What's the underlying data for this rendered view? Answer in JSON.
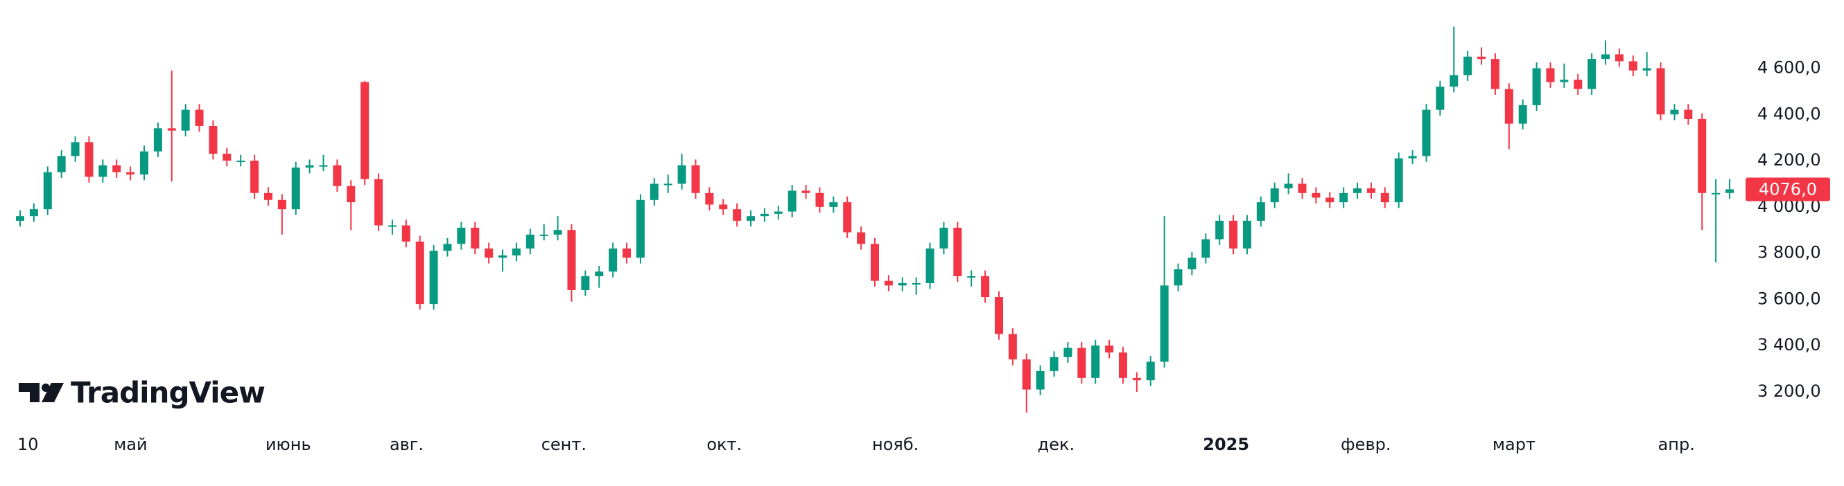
{
  "chart_data": {
    "type": "candlestick",
    "brand": "TradingView",
    "up_color": "#089981",
    "down_color": "#f23645",
    "ylim": [
      3068,
      4895
    ],
    "yticks": [
      {
        "value": 3200,
        "label": "3 200,0"
      },
      {
        "value": 3400,
        "label": "3 400,0"
      },
      {
        "value": 3600,
        "label": "3 600,0"
      },
      {
        "value": 3800,
        "label": "3 800,0"
      },
      {
        "value": 4000,
        "label": "4 000,0"
      },
      {
        "value": 4200,
        "label": "4 200,0"
      },
      {
        "value": 4400,
        "label": "4 400,0"
      },
      {
        "value": 4600,
        "label": "4 600,0"
      }
    ],
    "x_labels": [
      {
        "label": "10",
        "index": 0
      },
      {
        "label": "май",
        "index": 7
      },
      {
        "label": "июнь",
        "index": 18
      },
      {
        "label": "авг.",
        "index": 27
      },
      {
        "label": "сент.",
        "index": 38
      },
      {
        "label": "окт.",
        "index": 50
      },
      {
        "label": "нояб.",
        "index": 62
      },
      {
        "label": "дек.",
        "index": 74
      },
      {
        "label": "2025",
        "index": 86
      },
      {
        "label": "февр.",
        "index": 96
      },
      {
        "label": "март",
        "index": 107
      },
      {
        "label": "апр.",
        "index": 119
      }
    ],
    "last_price_label": "4076,0",
    "candles": [
      [
        3940,
        3985,
        3915,
        3960
      ],
      [
        3960,
        4015,
        3935,
        3990
      ],
      [
        3990,
        4175,
        3965,
        4150
      ],
      [
        4150,
        4245,
        4125,
        4220
      ],
      [
        4220,
        4305,
        4195,
        4280
      ],
      [
        4280,
        4305,
        4105,
        4130
      ],
      [
        4130,
        4205,
        4105,
        4180
      ],
      [
        4180,
        4205,
        4125,
        4150
      ],
      [
        4150,
        4175,
        4115,
        4140
      ],
      [
        4140,
        4265,
        4115,
        4240
      ],
      [
        4240,
        4365,
        4215,
        4340
      ],
      [
        4340,
        4590,
        4110,
        4330
      ],
      [
        4330,
        4445,
        4305,
        4420
      ],
      [
        4420,
        4445,
        4325,
        4350
      ],
      [
        4350,
        4375,
        4205,
        4230
      ],
      [
        4230,
        4255,
        4175,
        4200
      ],
      [
        4200,
        4225,
        4175,
        4200
      ],
      [
        4200,
        4225,
        4035,
        4060
      ],
      [
        4060,
        4085,
        4005,
        4030
      ],
      [
        4030,
        4055,
        3880,
        3990
      ],
      [
        3990,
        4195,
        3965,
        4170
      ],
      [
        4170,
        4205,
        4145,
        4180
      ],
      [
        4180,
        4225,
        4155,
        4180
      ],
      [
        4180,
        4205,
        4065,
        4090
      ],
      [
        4090,
        4115,
        3900,
        4020
      ],
      [
        4540,
        4545,
        4095,
        4120
      ],
      [
        4120,
        4145,
        3895,
        3920
      ],
      [
        3920,
        3945,
        3880,
        3920
      ],
      [
        3920,
        3945,
        3825,
        3850
      ],
      [
        3850,
        3875,
        3555,
        3580
      ],
      [
        3580,
        3835,
        3555,
        3810
      ],
      [
        3810,
        3865,
        3785,
        3840
      ],
      [
        3840,
        3935,
        3815,
        3910
      ],
      [
        3910,
        3935,
        3795,
        3820
      ],
      [
        3820,
        3845,
        3755,
        3780
      ],
      [
        3780,
        3815,
        3720,
        3790
      ],
      [
        3790,
        3845,
        3765,
        3820
      ],
      [
        3820,
        3905,
        3795,
        3880
      ],
      [
        3880,
        3925,
        3855,
        3880
      ],
      [
        3880,
        3960,
        3855,
        3900
      ],
      [
        3900,
        3925,
        3590,
        3640
      ],
      [
        3640,
        3725,
        3615,
        3700
      ],
      [
        3700,
        3745,
        3650,
        3720
      ],
      [
        3720,
        3845,
        3695,
        3820
      ],
      [
        3820,
        3845,
        3755,
        3780
      ],
      [
        3780,
        4055,
        3755,
        4030
      ],
      [
        4030,
        4125,
        4005,
        4100
      ],
      [
        4100,
        4140,
        4060,
        4100
      ],
      [
        4100,
        4230,
        4075,
        4180
      ],
      [
        4180,
        4205,
        4035,
        4060
      ],
      [
        4060,
        4085,
        3985,
        4010
      ],
      [
        4010,
        4035,
        3965,
        3990
      ],
      [
        3990,
        4015,
        3915,
        3940
      ],
      [
        3940,
        3985,
        3915,
        3960
      ],
      [
        3960,
        3995,
        3935,
        3970
      ],
      [
        3970,
        4005,
        3945,
        3980
      ],
      [
        3980,
        4095,
        3955,
        4070
      ],
      [
        4070,
        4095,
        4035,
        4060
      ],
      [
        4060,
        4085,
        3975,
        4000
      ],
      [
        4000,
        4045,
        3975,
        4020
      ],
      [
        4020,
        4045,
        3865,
        3890
      ],
      [
        3890,
        3915,
        3815,
        3840
      ],
      [
        3840,
        3865,
        3655,
        3680
      ],
      [
        3680,
        3705,
        3635,
        3660
      ],
      [
        3660,
        3695,
        3635,
        3670
      ],
      [
        3670,
        3695,
        3620,
        3670
      ],
      [
        3670,
        3845,
        3645,
        3820
      ],
      [
        3820,
        3935,
        3795,
        3910
      ],
      [
        3910,
        3935,
        3675,
        3700
      ],
      [
        3700,
        3725,
        3655,
        3700
      ],
      [
        3700,
        3725,
        3585,
        3610
      ],
      [
        3610,
        3635,
        3425,
        3450
      ],
      [
        3450,
        3475,
        3315,
        3340
      ],
      [
        3340,
        3365,
        3110,
        3210
      ],
      [
        3210,
        3315,
        3185,
        3290
      ],
      [
        3290,
        3375,
        3265,
        3350
      ],
      [
        3350,
        3415,
        3325,
        3390
      ],
      [
        3390,
        3415,
        3235,
        3260
      ],
      [
        3260,
        3425,
        3235,
        3400
      ],
      [
        3400,
        3425,
        3345,
        3370
      ],
      [
        3370,
        3395,
        3235,
        3260
      ],
      [
        3260,
        3285,
        3200,
        3250
      ],
      [
        3250,
        3355,
        3225,
        3330
      ],
      [
        3330,
        3960,
        3305,
        3660
      ],
      [
        3660,
        3755,
        3635,
        3730
      ],
      [
        3730,
        3805,
        3705,
        3780
      ],
      [
        3780,
        3885,
        3755,
        3860
      ],
      [
        3860,
        3965,
        3835,
        3940
      ],
      [
        3940,
        3965,
        3795,
        3820
      ],
      [
        3820,
        3965,
        3795,
        3940
      ],
      [
        3940,
        4045,
        3915,
        4020
      ],
      [
        4020,
        4105,
        3995,
        4080
      ],
      [
        4080,
        4145,
        4055,
        4100
      ],
      [
        4100,
        4125,
        4035,
        4060
      ],
      [
        4060,
        4085,
        4015,
        4040
      ],
      [
        4040,
        4065,
        3995,
        4020
      ],
      [
        4020,
        4085,
        3995,
        4060
      ],
      [
        4060,
        4105,
        4035,
        4080
      ],
      [
        4080,
        4105,
        4035,
        4060
      ],
      [
        4060,
        4085,
        3995,
        4020
      ],
      [
        4020,
        4235,
        3995,
        4210
      ],
      [
        4210,
        4245,
        4185,
        4220
      ],
      [
        4220,
        4445,
        4195,
        4420
      ],
      [
        4420,
        4545,
        4395,
        4520
      ],
      [
        4520,
        4780,
        4495,
        4570
      ],
      [
        4570,
        4675,
        4545,
        4650
      ],
      [
        4650,
        4690,
        4615,
        4640
      ],
      [
        4640,
        4665,
        4485,
        4510
      ],
      [
        4510,
        4535,
        4250,
        4360
      ],
      [
        4360,
        4465,
        4335,
        4440
      ],
      [
        4440,
        4625,
        4415,
        4600
      ],
      [
        4600,
        4625,
        4515,
        4540
      ],
      [
        4540,
        4620,
        4515,
        4550
      ],
      [
        4550,
        4575,
        4485,
        4510
      ],
      [
        4510,
        4665,
        4485,
        4640
      ],
      [
        4640,
        4720,
        4615,
        4660
      ],
      [
        4660,
        4685,
        4605,
        4630
      ],
      [
        4630,
        4655,
        4565,
        4590
      ],
      [
        4590,
        4670,
        4565,
        4600
      ],
      [
        4600,
        4625,
        4375,
        4400
      ],
      [
        4400,
        4445,
        4375,
        4420
      ],
      [
        4420,
        4445,
        4355,
        4380
      ],
      [
        4380,
        4405,
        3900,
        4060
      ],
      [
        4060,
        4120,
        3760,
        4060
      ],
      [
        4060,
        4120,
        4035,
        4076
      ]
    ]
  }
}
